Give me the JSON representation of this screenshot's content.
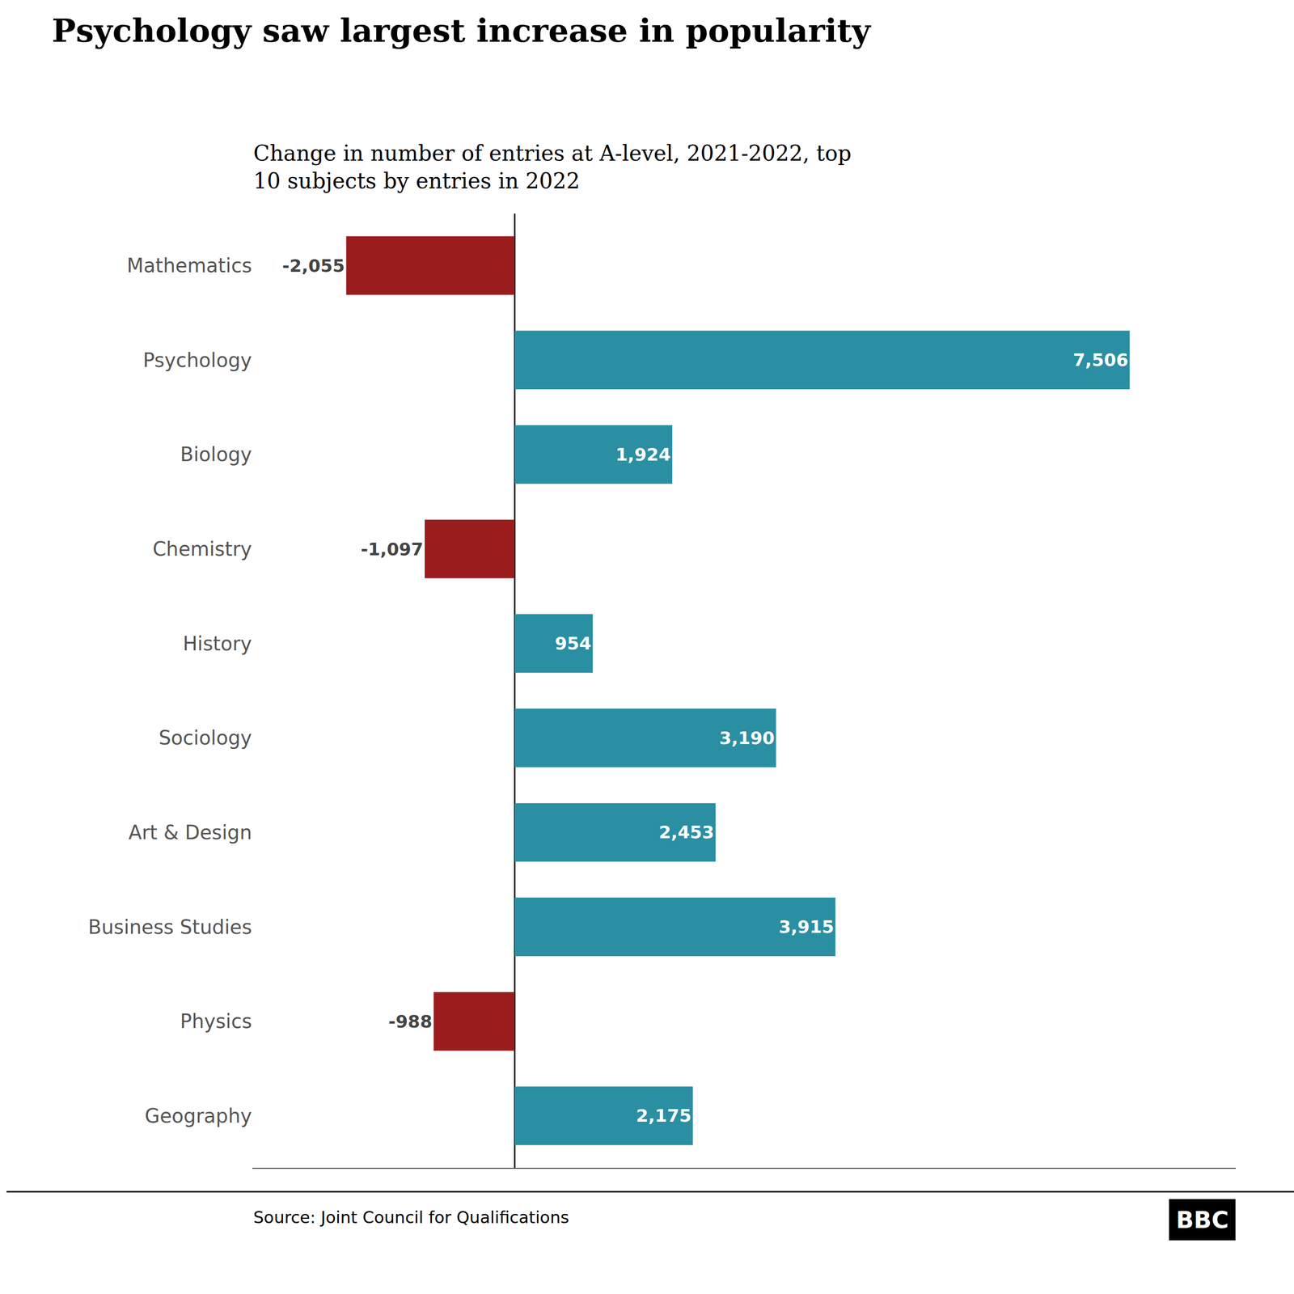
{
  "chart_data": {
    "type": "bar",
    "orientation": "horizontal",
    "title": "Psychology saw largest increase in popularity",
    "subtitle": "Change in number of entries at A-level, 2021-2022, top\n10 subjects by entries in 2022",
    "categories": [
      "Mathematics",
      "Psychology",
      "Biology",
      "Chemistry",
      "History",
      "Sociology",
      "Art & Design",
      "Business Studies",
      "Physics",
      "Geography"
    ],
    "values": [
      -2055,
      7506,
      1924,
      -1097,
      954,
      3190,
      2453,
      3915,
      -988,
      2175
    ],
    "value_labels": [
      "-2,055",
      "7,506",
      "1,924",
      "-1,097",
      "954",
      "3,190",
      "2,453",
      "3,915",
      "-988",
      "2,175"
    ],
    "colors": [
      "#9b1c1c",
      "#2a8fa3",
      "#2a8fa3",
      "#9b1c1c",
      "#2a8fa3",
      "#2a8fa3",
      "#2a8fa3",
      "#2a8fa3",
      "#9b1c1c",
      "#2a8fa3"
    ],
    "data_labels": true,
    "xlim": [
      -3200,
      8800
    ],
    "tick_labels": "y",
    "grid": false,
    "annotations": [
      "Source: Joint Council for Qualifications",
      "BBC"
    ]
  }
}
